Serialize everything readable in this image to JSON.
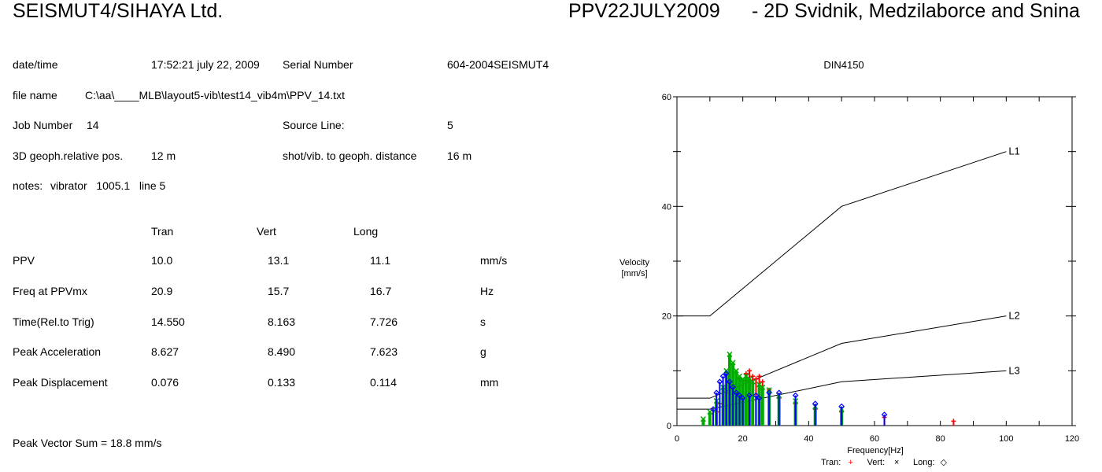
{
  "header": {
    "company": "SEISMUT4/SIHAYA Ltd.",
    "record": "PPV22JULY2009",
    "project": "- 2D Svidnik, Medzilaborce and Snina"
  },
  "info": {
    "datetime_label": "date/time",
    "datetime_value": "17:52:21  july 22, 2009",
    "serial_label": "Serial Number",
    "serial_value": "604-2004SEISMUT4",
    "filename_label": "file name",
    "filename_value": "C:\\aa\\____MLB\\layout5-vib\\test14_vib4m\\PPV_14.txt",
    "job_label": "Job Number",
    "job_value": "14",
    "source_label": "Source Line:",
    "source_value": "5",
    "geoph_label": "3D geoph.relative pos.",
    "geoph_value": "12 m",
    "distance_label": "shot/vib. to geoph. distance",
    "distance_value": "16 m",
    "notes_label": "notes:",
    "notes_value": "vibrator   1005.1   line 5"
  },
  "table": {
    "columns": [
      "Tran",
      "Vert",
      "Long"
    ],
    "rows": [
      {
        "label": "PPV",
        "values": [
          "10.0",
          "13.1",
          "11.1"
        ],
        "unit": "mm/s"
      },
      {
        "label": "Freq at PPVmx",
        "values": [
          "20.9",
          "15.7",
          "16.7"
        ],
        "unit": "Hz"
      },
      {
        "label": "Time(Rel.to Trig)",
        "values": [
          "14.550",
          "8.163",
          "7.726"
        ],
        "unit": "s"
      },
      {
        "label": "Peak Acceleration",
        "values": [
          "8.627",
          "8.490",
          "7.623"
        ],
        "unit": "g"
      },
      {
        "label": "Peak Displacement",
        "values": [
          "0.076",
          "0.133",
          "0.114"
        ],
        "unit": "mm"
      }
    ]
  },
  "peak_vector": "Peak Vector Sum = 18.8 mm/s",
  "chart_data": {
    "type": "scatter",
    "title": "DIN4150",
    "xlabel": "Frequency[Hz]",
    "ylabel": "Velocity",
    "ylabel_unit": "[mm/s]",
    "xlim": [
      0,
      120
    ],
    "ylim": [
      0,
      60
    ],
    "xticks": [
      0,
      20,
      40,
      60,
      80,
      100,
      120
    ],
    "yticks": [
      0,
      20,
      40,
      60
    ],
    "grid": false,
    "legend_position": "bottom",
    "legend": [
      {
        "name": "Tran:",
        "marker": "+",
        "color": "#ff0000"
      },
      {
        "name": "Vert:",
        "marker": "×",
        "color": "#000000"
      },
      {
        "name": "Long:",
        "marker": "◇",
        "color": "#000000"
      }
    ],
    "limit_lines": [
      {
        "name": "L1",
        "x": [
          0,
          10,
          50,
          100
        ],
        "y": [
          20,
          20,
          40,
          50
        ]
      },
      {
        "name": "L2",
        "x": [
          0,
          10,
          50,
          100
        ],
        "y": [
          5,
          5,
          15,
          20
        ]
      },
      {
        "name": "L3",
        "x": [
          0,
          10,
          50,
          100
        ],
        "y": [
          3,
          3,
          8,
          10
        ]
      }
    ],
    "series": [
      {
        "name": "Tran",
        "color": "#ff0000",
        "x": [
          12,
          13,
          15,
          17,
          19,
          21,
          22,
          23,
          24,
          25,
          26,
          28,
          31,
          36,
          42,
          50,
          63,
          84
        ],
        "y": [
          2.5,
          4,
          6,
          7.5,
          8.5,
          9.5,
          10,
          9,
          8.5,
          9,
          8,
          6.5,
          5,
          4,
          3,
          2.5,
          1.5,
          0.8
        ]
      },
      {
        "name": "Vert",
        "color": "#00aa00",
        "x": [
          8,
          10,
          12,
          14,
          15,
          16,
          17,
          18,
          19,
          20,
          21,
          22,
          23,
          25,
          26,
          28,
          31,
          36,
          42,
          50
        ],
        "y": [
          1.2,
          2.5,
          4.5,
          7,
          10,
          13,
          11.5,
          10,
          9,
          8.5,
          9,
          8.5,
          8,
          7.5,
          7,
          6.5,
          5.5,
          4.5,
          3.5,
          3
        ]
      },
      {
        "name": "Long",
        "color": "#0000ff",
        "x": [
          11,
          12,
          13,
          14,
          15,
          16,
          17,
          18,
          19,
          20,
          22,
          24,
          25,
          28,
          31,
          36,
          42,
          50,
          63
        ],
        "y": [
          3,
          6,
          8,
          9,
          9.5,
          8,
          7,
          6,
          5.5,
          5,
          5.5,
          5.5,
          5,
          6,
          6,
          5.5,
          4,
          3.5,
          2
        ]
      }
    ]
  }
}
